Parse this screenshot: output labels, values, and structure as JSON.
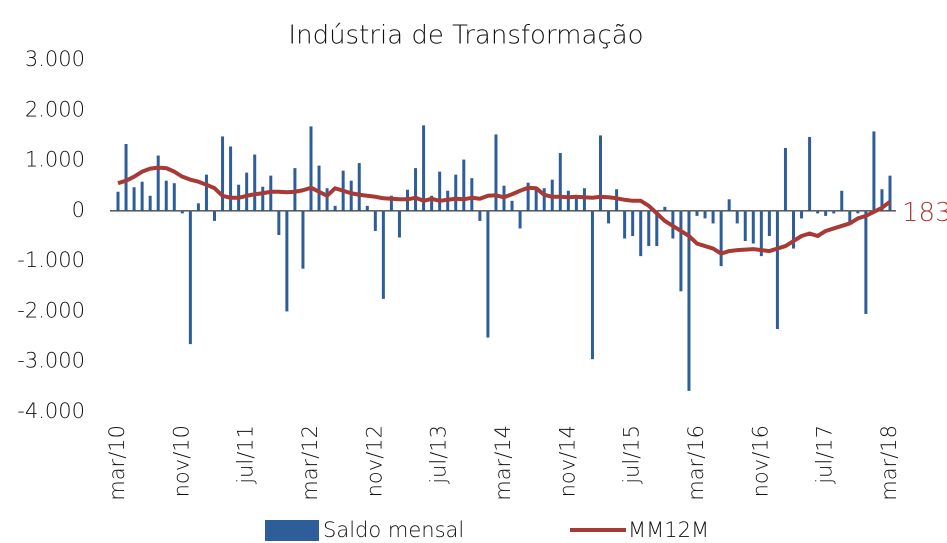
{
  "chart_data": {
    "type": "bar_line",
    "title": "Indústria de Transformação",
    "categories": [
      "mar/10",
      null,
      null,
      null,
      null,
      null,
      null,
      null,
      "nov/10",
      null,
      null,
      null,
      null,
      null,
      null,
      null,
      "jul/11",
      null,
      null,
      null,
      null,
      null,
      null,
      null,
      "mar/12",
      null,
      null,
      null,
      null,
      null,
      null,
      null,
      "nov/12",
      null,
      null,
      null,
      null,
      null,
      null,
      null,
      "jul/13",
      null,
      null,
      null,
      null,
      null,
      null,
      null,
      "mar/14",
      null,
      null,
      null,
      null,
      null,
      null,
      null,
      "nov/14",
      null,
      null,
      null,
      null,
      null,
      null,
      null,
      "jul/15",
      null,
      null,
      null,
      null,
      null,
      null,
      null,
      "mar/16",
      null,
      null,
      null,
      null,
      null,
      null,
      null,
      "nov/16",
      null,
      null,
      null,
      null,
      null,
      null,
      null,
      "jul/17",
      null,
      null,
      null,
      null,
      null,
      null,
      null,
      "mar/18"
    ],
    "series": [
      {
        "name": "Saldo mensal",
        "color": "#2e5e9a",
        "kind": "bar",
        "values": [
          380,
          1330,
          470,
          580,
          300,
          1100,
          600,
          550,
          -50,
          -2650,
          150,
          720,
          -200,
          1480,
          1280,
          520,
          760,
          1120,
          480,
          700,
          -480,
          -2000,
          850,
          -1150,
          1680,
          900,
          450,
          100,
          800,
          600,
          950,
          100,
          -400,
          -1750,
          300,
          -530,
          420,
          850,
          1700,
          300,
          780,
          400,
          720,
          1020,
          650,
          -200,
          -2520,
          1520,
          500,
          200,
          -350,
          560,
          450,
          450,
          620,
          1150,
          400,
          300,
          450,
          -2950,
          1500,
          -250,
          430,
          -550,
          -500,
          -900,
          -700,
          -700,
          80,
          -550,
          -1600,
          -3580,
          -100,
          -150,
          -250,
          -1100,
          230,
          -250,
          -600,
          -650,
          -900,
          -500,
          -2350,
          1250,
          -750,
          -150,
          1470,
          -50,
          -100,
          -50,
          400,
          -250,
          -50,
          -2050,
          1580,
          430,
          700
        ]
      },
      {
        "name": "MM12M",
        "color": "#a83a36",
        "kind": "line",
        "values": [
          550,
          600,
          680,
          780,
          840,
          860,
          850,
          780,
          680,
          620,
          580,
          520,
          450,
          300,
          260,
          260,
          300,
          330,
          350,
          380,
          380,
          370,
          380,
          410,
          460,
          380,
          300,
          450,
          400,
          350,
          320,
          300,
          280,
          250,
          240,
          230,
          230,
          260,
          200,
          240,
          200,
          220,
          240,
          230,
          260,
          240,
          300,
          310,
          270,
          330,
          400,
          460,
          450,
          320,
          280,
          280,
          270,
          280,
          270,
          260,
          280,
          270,
          250,
          220,
          200,
          200,
          100,
          -50,
          -200,
          -300,
          -400,
          -500,
          -650,
          -700,
          -750,
          -850,
          -800,
          -780,
          -770,
          -760,
          -780,
          -800,
          -750,
          -700,
          -600,
          -500,
          -450,
          -500,
          -400,
          -350,
          -300,
          -250,
          -150,
          -100,
          -20,
          60,
          183
        ]
      }
    ],
    "ylim": [
      -4000,
      3000
    ],
    "yticks": [
      {
        "value": -4000,
        "label": "-4.000"
      },
      {
        "value": -3000,
        "label": "-3.000"
      },
      {
        "value": -2000,
        "label": "-2.000"
      },
      {
        "value": -1000,
        "label": "-1.000"
      },
      0,
      {
        "value": 1000,
        "label": "1.000"
      },
      {
        "value": 2000,
        "label": "2.000"
      },
      {
        "value": 3000,
        "label": "3.000"
      }
    ],
    "grid": false,
    "legend": "bottom"
  }
}
